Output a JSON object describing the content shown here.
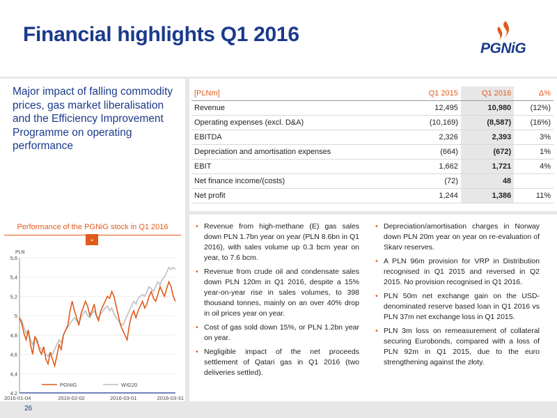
{
  "title": "Financial highlights Q1 2016",
  "logo": {
    "text": "PGNiG",
    "color_brand": "#1b3a8c",
    "color_flame": "#e05a1a"
  },
  "lead": "Major impact of falling commodity prices, gas market liberalisation and the Efficiency Improvement Programme on operating performance",
  "table": {
    "header": [
      "[PLNm]",
      "Q1 2015",
      "Q1 2016",
      "Δ%"
    ],
    "rows": [
      [
        "Revenue",
        "12,495",
        "10,980",
        "(12%)"
      ],
      [
        "Operating expenses (excl. D&A)",
        "(10,169)",
        "(8,587)",
        "(16%)"
      ],
      [
        "EBITDA",
        "2,326",
        "2,393",
        "3%"
      ],
      [
        "Depreciation and amortisation expenses",
        "(664)",
        "(672)",
        "1%"
      ],
      [
        "EBIT",
        "1,662",
        "1,721",
        "4%"
      ],
      [
        "Net finance income/(costs)",
        "(72)",
        "48",
        ""
      ],
      [
        "Net profit",
        "1,244",
        "1,386",
        "11%"
      ]
    ]
  },
  "chart_title": "Performance of the PGNiG stock in Q1 2016",
  "chart_data": {
    "type": "line",
    "title": "Performance of the PGNiG stock in Q1 2016",
    "ylabel": "PLN",
    "xlabel": "",
    "ylim": [
      4.2,
      5.6
    ],
    "yticks": [
      "4,2",
      "4,4",
      "4,6",
      "4,8",
      "5",
      "5,2",
      "5,4",
      "5,6"
    ],
    "xticks": [
      "2016-01-04",
      "2016-02-02",
      "2016-03-01",
      "2016-03-31"
    ],
    "legend_position": "bottom",
    "series": [
      {
        "name": "PGNIG",
        "color": "#e05a1a",
        "values": [
          4.98,
          4.92,
          4.82,
          4.75,
          4.85,
          4.7,
          4.6,
          4.78,
          4.75,
          4.65,
          4.6,
          4.68,
          4.55,
          4.5,
          4.62,
          4.55,
          4.48,
          4.58,
          4.7,
          4.65,
          4.8,
          4.85,
          4.9,
          5.05,
          5.15,
          5.05,
          4.98,
          4.9,
          5.02,
          5.08,
          5.15,
          5.1,
          5.0,
          5.05,
          5.12,
          5.0,
          4.95,
          5.05,
          5.1,
          5.15,
          5.2,
          5.18,
          5.25,
          5.2,
          5.1,
          5.0,
          4.9,
          4.85,
          4.8,
          4.75,
          4.9,
          5.0,
          5.05,
          4.98,
          5.05,
          5.1,
          5.15,
          5.08,
          5.12,
          5.2,
          5.25,
          5.18,
          5.15,
          5.22,
          5.3,
          5.25,
          5.2,
          5.28,
          5.35,
          5.3,
          5.2,
          5.15
        ]
      },
      {
        "name": "WIG20",
        "color": "#bdbdbd",
        "values": [
          4.98,
          4.95,
          4.88,
          4.82,
          4.85,
          4.75,
          4.7,
          4.78,
          4.72,
          4.68,
          4.65,
          4.62,
          4.6,
          4.58,
          4.62,
          4.6,
          4.65,
          4.7,
          4.75,
          4.72,
          4.8,
          4.85,
          4.88,
          4.92,
          4.95,
          4.98,
          4.95,
          4.92,
          4.98,
          5.02,
          5.05,
          5.0,
          4.98,
          5.02,
          5.05,
          5.0,
          4.98,
          5.02,
          5.05,
          5.08,
          5.1,
          5.05,
          5.08,
          5.02,
          4.98,
          4.95,
          4.92,
          4.9,
          4.95,
          5.0,
          5.05,
          5.1,
          5.15,
          5.12,
          5.18,
          5.2,
          5.22,
          5.2,
          5.25,
          5.3,
          5.28,
          5.25,
          5.3,
          5.35,
          5.32,
          5.38,
          5.4,
          5.45,
          5.5,
          5.48,
          5.5,
          5.48
        ]
      }
    ]
  },
  "bullets_left": [
    "Revenue from high-methane (E) gas sales down PLN 1.7bn year on year (PLN 8.6bn in Q1 2016), with sales volume up 0.3 bcm year on year, to 7.6 bcm.",
    "Revenue from crude oil and condensate sales down PLN 120m in Q1 2016, despite a 15% year-on-year rise in sales volumes, to 398 thousand tonnes, mainly on an over 40% drop in oil prices year on year.",
    "Cost of gas sold down 15%, or PLN 1.2bn year on year.",
    "Negligible impact of the net proceeds settlement of Qatari gas in Q1 2016 (two deliveries settled)."
  ],
  "bullets_right": [
    "Depreciation/amortisation charges in Norway down PLN 20m year on year on re-evaluation of Skarv reserves.",
    "A PLN 96m provision for VRP in Distribution recognised in Q1 2015 and reversed in Q2 2015. No provision recognised in Q1 2016.",
    "PLN 50m net exchange gain on the USD-denominated reserve based loan in Q1 2016 vs PLN 37m net exchange loss in Q1 2015.",
    "PLN 3m loss on remeasurement of collateral securing Eurobonds, compared with a loss of PLN 92m in Q1 2015, due to the euro strengthening against the złoty."
  ],
  "page_number": "26"
}
